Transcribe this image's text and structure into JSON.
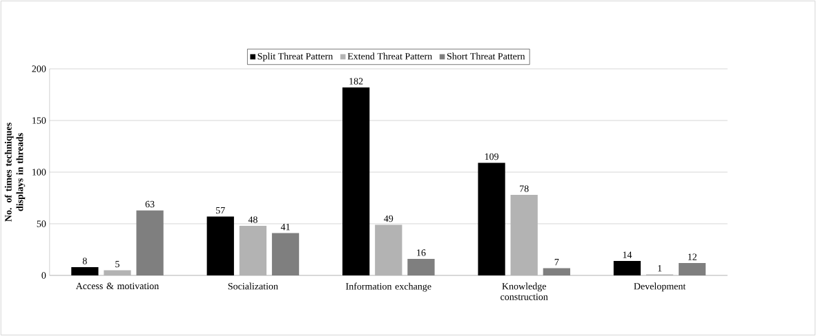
{
  "chart_data": {
    "type": "bar",
    "ylabel": "No. of times techniques displays in threads",
    "categories": [
      "Access & motivation",
      "Socialization",
      "Information exchange",
      "Knowledge construction",
      "Development"
    ],
    "series": [
      {
        "name": "Split Threat Pattern",
        "color": "#000000",
        "values": [
          8,
          57,
          182,
          109,
          14
        ]
      },
      {
        "name": "Extend Threat Pattern",
        "color": "#b3b3b3",
        "values": [
          5,
          48,
          49,
          78,
          1
        ]
      },
      {
        "name": "Short Threat Pattern",
        "color": "#7f7f7f",
        "values": [
          63,
          41,
          16,
          7,
          12
        ]
      }
    ],
    "ylim": [
      0,
      200
    ],
    "yticks": [
      0,
      50,
      100,
      150,
      200
    ],
    "grid": "y",
    "legend": "top",
    "data_labels": true
  }
}
